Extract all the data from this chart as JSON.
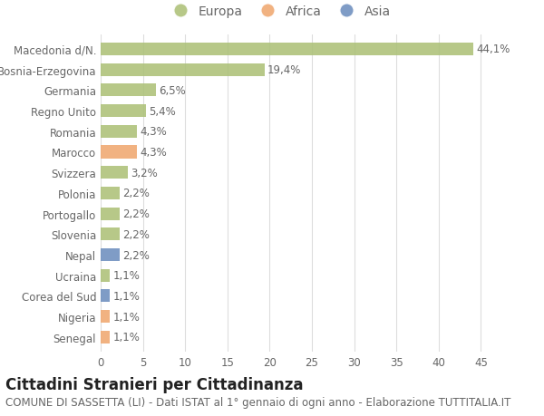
{
  "categories": [
    "Macedonia d/N.",
    "Bosnia-Erzegovina",
    "Germania",
    "Regno Unito",
    "Romania",
    "Marocco",
    "Svizzera",
    "Polonia",
    "Portogallo",
    "Slovenia",
    "Nepal",
    "Ucraina",
    "Corea del Sud",
    "Nigeria",
    "Senegal"
  ],
  "values": [
    44.1,
    19.4,
    6.5,
    5.4,
    4.3,
    4.3,
    3.2,
    2.2,
    2.2,
    2.2,
    2.2,
    1.1,
    1.1,
    1.1,
    1.1
  ],
  "labels": [
    "44,1%",
    "19,4%",
    "6,5%",
    "5,4%",
    "4,3%",
    "4,3%",
    "3,2%",
    "2,2%",
    "2,2%",
    "2,2%",
    "2,2%",
    "1,1%",
    "1,1%",
    "1,1%",
    "1,1%"
  ],
  "colors": [
    "#adc178",
    "#adc178",
    "#adc178",
    "#adc178",
    "#adc178",
    "#f0a870",
    "#adc178",
    "#adc178",
    "#adc178",
    "#adc178",
    "#6d8fbf",
    "#adc178",
    "#6d8fbf",
    "#f0a870",
    "#f0a870"
  ],
  "legend_labels": [
    "Europa",
    "Africa",
    "Asia"
  ],
  "legend_colors": [
    "#adc178",
    "#f0a870",
    "#6d8fbf"
  ],
  "title": "Cittadini Stranieri per Cittadinanza",
  "subtitle": "COMUNE DI SASSETTA (LI) - Dati ISTAT al 1° gennaio di ogni anno - Elaborazione TUTTITALIA.IT",
  "xlim": [
    0,
    47
  ],
  "xticks": [
    0,
    5,
    10,
    15,
    20,
    25,
    30,
    35,
    40,
    45
  ],
  "background_color": "#ffffff",
  "grid_color": "#dddddd",
  "bar_height": 0.62,
  "title_fontsize": 12,
  "subtitle_fontsize": 8.5,
  "tick_fontsize": 8.5,
  "label_fontsize": 8.5,
  "legend_fontsize": 10
}
